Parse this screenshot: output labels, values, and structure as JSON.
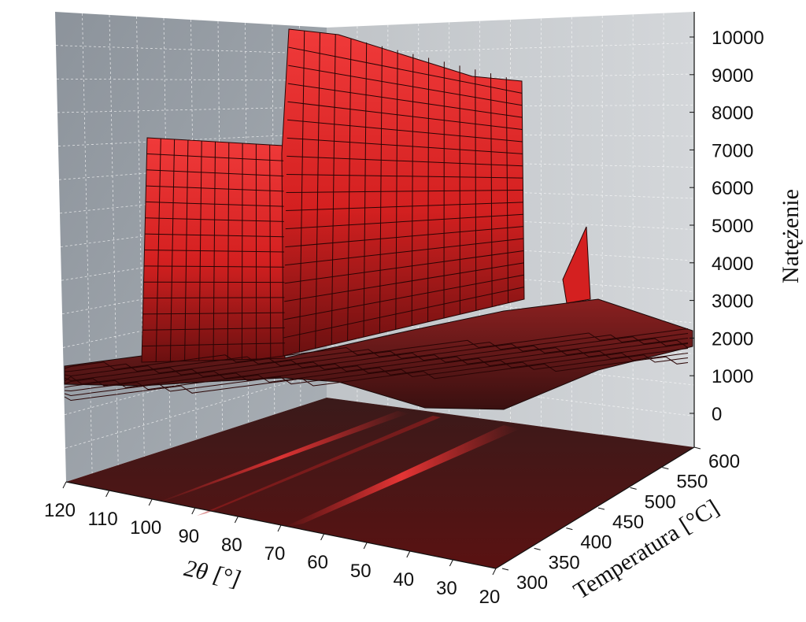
{
  "chart_data": {
    "type": "surface3d",
    "z_axis": {
      "label": "Natężenie",
      "range": [
        0,
        10000
      ],
      "ticks": [
        "0",
        "1000",
        "2000",
        "3000",
        "4000",
        "5000",
        "6000",
        "7000",
        "8000",
        "9000",
        "10000"
      ]
    },
    "x_axis": {
      "label": "2θ [°]",
      "range": [
        20,
        120
      ],
      "ticks": [
        "120",
        "110",
        "100",
        "90",
        "80",
        "70",
        "60",
        "50",
        "40",
        "30",
        "20"
      ]
    },
    "y_axis": {
      "label": "Temperatura [°C]",
      "range": [
        300,
        600
      ],
      "ticks": [
        "300",
        "350",
        "400",
        "450",
        "500",
        "550",
        "600"
      ]
    },
    "grid": true,
    "surface_color": "#e02626",
    "floor_projection": "contour heat map",
    "series": [
      {
        "x": [
          20,
          25,
          30,
          35,
          40,
          42,
          44,
          46,
          50,
          55,
          60,
          65,
          70,
          75,
          80,
          85,
          90,
          95,
          100,
          105,
          110,
          115,
          120
        ],
        "values_at_300C": [
          1800,
          1500,
          1300,
          1700,
          1500,
          3200,
          1200,
          1500,
          1200,
          1300,
          1200,
          9500,
          9800,
          10000,
          9800,
          8500,
          1300,
          1200,
          7500,
          7600,
          7400,
          1200,
          1100
        ]
      }
    ]
  }
}
